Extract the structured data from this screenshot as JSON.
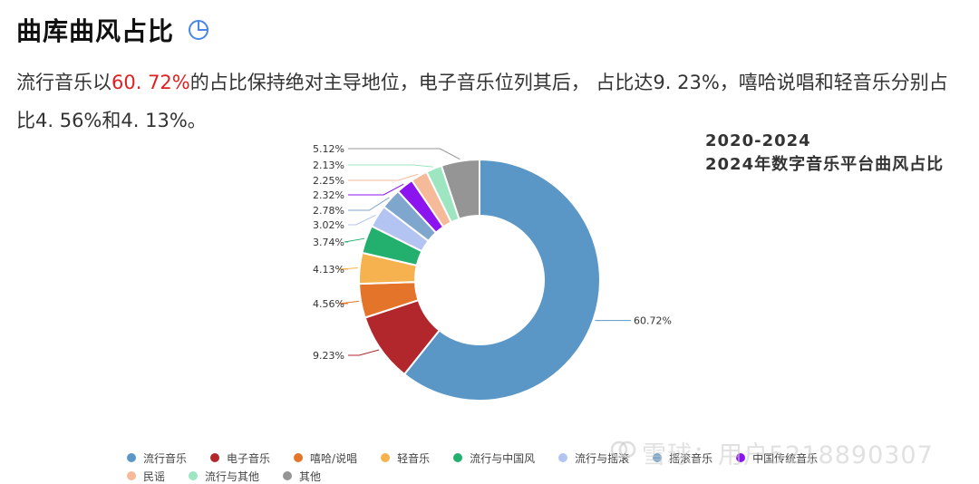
{
  "header": {
    "title": "曲库曲风占比",
    "icon": "pie-chart-icon"
  },
  "description": {
    "part1": "流行音乐以",
    "highlight": "60. 72%",
    "part2": "的占比保持绝对主导地位，电子音乐位列其后， 占比达9. 23%，嘻哈说唱和轻音乐分别占比4. 56%和4. 13%。",
    "highlight_color": "#e02020"
  },
  "watermark": {
    "logo": "snowball-icon",
    "text": "雪球：用户5218890307"
  },
  "chart_data": {
    "type": "pie",
    "variant": "donut",
    "title_line1": "2020-2024",
    "title_line2": "2024年数字音乐平台曲风占比",
    "legend_position": "bottom",
    "slices": [
      {
        "name": "流行音乐",
        "value": 60.72,
        "label": "60.72%",
        "color": "#5b97c6"
      },
      {
        "name": "电子音乐",
        "value": 9.23,
        "label": "9.23%",
        "color": "#b1272c"
      },
      {
        "name": "嘻哈/说唱",
        "value": 4.56,
        "label": "4.56%",
        "color": "#e5742b"
      },
      {
        "name": "轻音乐",
        "value": 4.13,
        "label": "4.13%",
        "color": "#f6b24e"
      },
      {
        "name": "流行与中国风",
        "value": 3.74,
        "label": "3.74%",
        "color": "#23b06f"
      },
      {
        "name": "流行与摇滚",
        "value": 3.02,
        "label": "3.02%",
        "color": "#b4c4f2"
      },
      {
        "name": "摇滚音乐",
        "value": 2.78,
        "label": "2.78%",
        "color": "#7fa6cc"
      },
      {
        "name": "中国传统音乐",
        "value": 2.32,
        "label": "2.32%",
        "color": "#8b14ef"
      },
      {
        "name": "民谣",
        "value": 2.25,
        "label": "2.25%",
        "color": "#f6b99a"
      },
      {
        "name": "流行与其他",
        "value": 2.13,
        "label": "2.13%",
        "color": "#9ee6c2"
      },
      {
        "name": "其他",
        "value": 5.12,
        "label": "5.12%",
        "color": "#959595"
      }
    ]
  }
}
